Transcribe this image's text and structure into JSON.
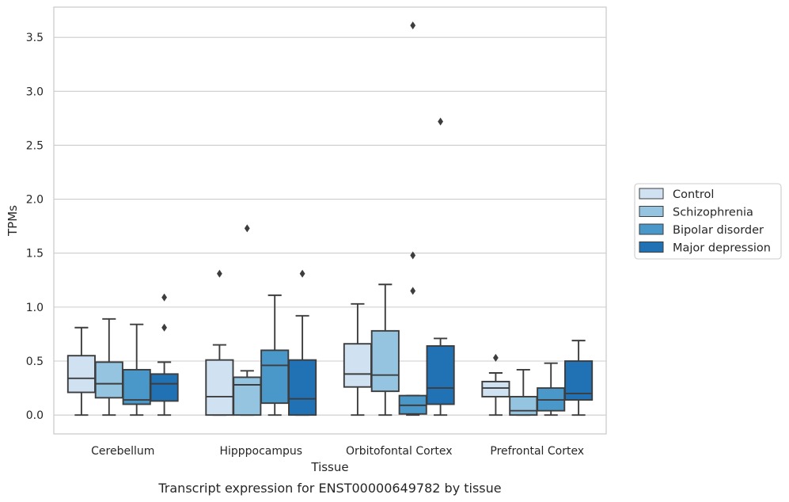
{
  "chart_data": {
    "type": "box",
    "xlabel": "Tissue",
    "ylabel": "TPMs",
    "caption": "Transcript expression for ENST00000649782 by tissue",
    "ylim": [
      -0.175,
      3.78
    ],
    "yticks": [
      0.0,
      0.5,
      1.0,
      1.5,
      2.0,
      2.5,
      3.0,
      3.5
    ],
    "ytick_labels": [
      "0.0",
      "0.5",
      "1.0",
      "1.5",
      "2.0",
      "2.5",
      "3.0",
      "3.5"
    ],
    "grid": "horizontal",
    "legend_placement": "right, outside",
    "categories": [
      "Cerebellum",
      "Hipppocampus",
      "Orbitofontal Cortex",
      "Prefrontal Cortex"
    ],
    "series": [
      {
        "name": "Control",
        "color": "#d0e1f2",
        "boxes": [
          {
            "whislo": 0.0,
            "q1": 0.21,
            "med": 0.34,
            "q3": 0.55,
            "whishi": 0.81,
            "fliers": []
          },
          {
            "whislo": 0.0,
            "q1": 0.0,
            "med": 0.17,
            "q3": 0.51,
            "whishi": 0.65,
            "fliers": [
              1.31
            ]
          },
          {
            "whislo": 0.0,
            "q1": 0.26,
            "med": 0.38,
            "q3": 0.66,
            "whishi": 1.03,
            "fliers": []
          },
          {
            "whislo": 0.0,
            "q1": 0.17,
            "med": 0.25,
            "q3": 0.31,
            "whishi": 0.39,
            "fliers": [
              0.53
            ]
          }
        ]
      },
      {
        "name": "Schizophrenia",
        "color": "#94c4df",
        "boxes": [
          {
            "whislo": 0.0,
            "q1": 0.16,
            "med": 0.29,
            "q3": 0.49,
            "whishi": 0.89,
            "fliers": []
          },
          {
            "whislo": 0.0,
            "q1": 0.0,
            "med": 0.28,
            "q3": 0.35,
            "whishi": 0.41,
            "fliers": [
              1.73
            ]
          },
          {
            "whislo": 0.0,
            "q1": 0.22,
            "med": 0.37,
            "q3": 0.78,
            "whishi": 1.21,
            "fliers": []
          },
          {
            "whislo": 0.0,
            "q1": 0.0,
            "med": 0.04,
            "q3": 0.17,
            "whishi": 0.42,
            "fliers": []
          }
        ]
      },
      {
        "name": "Bipolar disorder",
        "color": "#4a98c9",
        "boxes": [
          {
            "whislo": 0.0,
            "q1": 0.1,
            "med": 0.14,
            "q3": 0.42,
            "whishi": 0.84,
            "fliers": []
          },
          {
            "whislo": 0.0,
            "q1": 0.11,
            "med": 0.46,
            "q3": 0.6,
            "whishi": 1.11,
            "fliers": []
          },
          {
            "whislo": 0.0,
            "q1": 0.01,
            "med": 0.09,
            "q3": 0.18,
            "whishi": 0.18,
            "fliers": [
              1.15,
              1.48,
              3.61
            ]
          },
          {
            "whislo": 0.0,
            "q1": 0.04,
            "med": 0.14,
            "q3": 0.25,
            "whishi": 0.48,
            "fliers": []
          }
        ]
      },
      {
        "name": "Major depression",
        "color": "#2171b5",
        "boxes": [
          {
            "whislo": 0.0,
            "q1": 0.13,
            "med": 0.29,
            "q3": 0.38,
            "whishi": 0.49,
            "fliers": [
              0.81,
              1.09
            ]
          },
          {
            "whislo": 0.0,
            "q1": 0.0,
            "med": 0.15,
            "q3": 0.51,
            "whishi": 0.92,
            "fliers": [
              1.31
            ]
          },
          {
            "whislo": 0.0,
            "q1": 0.1,
            "med": 0.25,
            "q3": 0.64,
            "whishi": 0.71,
            "fliers": [
              2.72
            ]
          },
          {
            "whislo": 0.0,
            "q1": 0.14,
            "med": 0.2,
            "q3": 0.5,
            "whishi": 0.69,
            "fliers": []
          }
        ]
      }
    ]
  }
}
